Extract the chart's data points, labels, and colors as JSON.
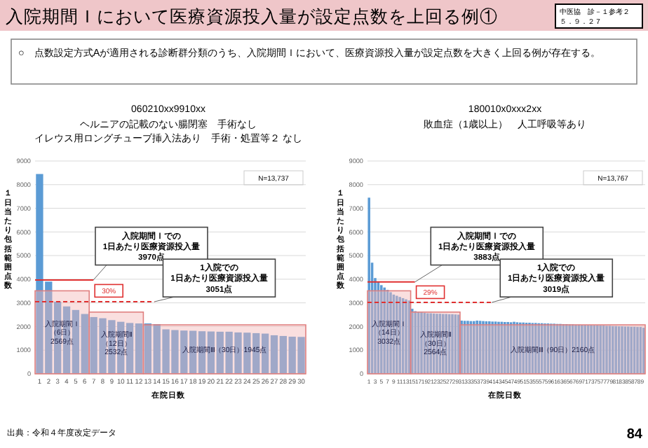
{
  "chart_data": [
    {
      "type": "bar",
      "title": "060210xx9910xx",
      "subtitle": "ヘルニアの記載のない腸閉塞　手術なし",
      "xlabel": "在院日数",
      "ylabel": "１日当たり包括範囲点数",
      "x": [
        1,
        2,
        3,
        4,
        5,
        6,
        7,
        8,
        9,
        10,
        11,
        12,
        13,
        14,
        15,
        16,
        17,
        18,
        19,
        20,
        21,
        22,
        23,
        24,
        25,
        26,
        27,
        28,
        29,
        30
      ],
      "values": [
        8450,
        3900,
        3050,
        2850,
        2700,
        2530,
        2400,
        2350,
        2270,
        2200,
        2150,
        2130,
        2130,
        2100,
        1880,
        1850,
        1830,
        1820,
        1800,
        1790,
        1780,
        1780,
        1750,
        1740,
        1720,
        1700,
        1630,
        1600,
        1570,
        1560
      ],
      "color": "#5b9bd5",
      "xlim": [
        0.5,
        30.5
      ],
      "xticks": [
        1,
        2,
        3,
        4,
        5,
        6,
        7,
        8,
        9,
        10,
        11,
        12,
        13,
        14,
        15,
        16,
        17,
        18,
        19,
        20,
        21,
        22,
        23,
        24,
        25,
        26,
        27,
        28,
        29,
        30
      ],
      "ylim": [
        0,
        9000
      ],
      "yticks": [
        0,
        1000,
        2000,
        3000,
        4000,
        5000,
        6000,
        7000,
        8000,
        9000
      ],
      "grid": "y",
      "ref_lines": [
        {
          "axis": "y",
          "value": 3970,
          "label": "入院期間Ｉでの\n1日あたり医療資源投入量\n3970点",
          "color": "#e03030",
          "line_style": "solid"
        },
        {
          "axis": "y",
          "value": 3051,
          "label": "1入院での\n1日あたり医療資源投入量\n3051点",
          "color": "#e03030",
          "line_style": "dashed"
        }
      ],
      "bands": [
        {
          "axis": "x",
          "from": 0.5,
          "to": 6.5,
          "label": "入院期間Ｉ（6日）\n2569点",
          "color": "#f4b8b8"
        },
        {
          "axis": "x",
          "from": 6.5,
          "to": 12.5,
          "label": "入院期間Ⅱ（12日）\n2532点",
          "color": "#f4b8b8"
        },
        {
          "axis": "x",
          "from": 12.5,
          "to": 30.5,
          "label": "入院期間Ⅲ（30日）1945点",
          "color": "#f4b8b8"
        }
      ],
      "annotations": [
        "N=13,737",
        "30%",
        "イレウス用ロングチューブ挿入法あり　手術・処置等２ なし",
        "入院期間Ｉにおいて医療資源投入量が設定点数を上回る例①",
        "中医協　診－１参考２５．９．２７",
        "○　点数設定方式Aが適用される診断群分類のうち、入院期間Ｉにおいて、医療資源投入量が設定点数を大きく上回る例が存在する。",
        "出典：令和４年度改定データ",
        "84"
      ]
    },
    {
      "type": "bar",
      "title": "180010x0xxx2xx",
      "subtitle": "敗血症（1歳以上）　人工呼吸等あり",
      "xlabel": "在院日数",
      "ylabel": "１日当たり包括範囲点数",
      "x": [
        1,
        2,
        3,
        4,
        5,
        6,
        7,
        8,
        9,
        10,
        11,
        12,
        13,
        14,
        15,
        16,
        17,
        18,
        19,
        20,
        21,
        22,
        23,
        24,
        25,
        26,
        27,
        28,
        29,
        30,
        31,
        32,
        33,
        34,
        35,
        36,
        37,
        38,
        39,
        40,
        41,
        42,
        43,
        44,
        45,
        46,
        47,
        48,
        49,
        50,
        51,
        52,
        53,
        54,
        55,
        56,
        57,
        58,
        59,
        60,
        61,
        62,
        63,
        64,
        65,
        66,
        67,
        68,
        69,
        70,
        71,
        72,
        73,
        74,
        75,
        76,
        77,
        78,
        79,
        80,
        81,
        82,
        83,
        84,
        85,
        86,
        87,
        88,
        89,
        90
      ],
      "values": [
        7450,
        4700,
        4050,
        3900,
        3750,
        3650,
        3550,
        3450,
        3350,
        3300,
        3250,
        3200,
        3150,
        3100,
        2750,
        2650,
        2620,
        2600,
        2580,
        2560,
        2560,
        2550,
        2540,
        2540,
        2530,
        2530,
        2520,
        2520,
        2510,
        2500,
        2250,
        2240,
        2240,
        2230,
        2230,
        2250,
        2240,
        2230,
        2220,
        2220,
        2210,
        2210,
        2200,
        2200,
        2190,
        2190,
        2180,
        2200,
        2180,
        2170,
        2170,
        2160,
        2160,
        2150,
        2150,
        2140,
        2140,
        2130,
        2130,
        2120,
        2120,
        2110,
        2110,
        2100,
        2100,
        2090,
        2090,
        2080,
        2080,
        2070,
        2070,
        2060,
        2060,
        2050,
        2050,
        2040,
        2040,
        2030,
        2030,
        2020,
        2020,
        2010,
        2010,
        2000,
        2000,
        1990,
        1990,
        1980,
        1980,
        1950
      ],
      "color": "#5b9bd5",
      "xlim": [
        0.5,
        90.5
      ],
      "xticks": [
        1,
        3,
        5,
        7,
        9,
        11,
        13,
        15,
        17,
        19,
        21,
        23,
        25,
        27,
        29,
        31,
        33,
        35,
        37,
        39,
        41,
        43,
        45,
        47,
        49,
        51,
        53,
        55,
        57,
        59,
        61,
        63,
        65,
        67,
        69,
        71,
        73,
        75,
        77,
        79,
        81,
        83,
        85,
        87,
        89
      ],
      "ylim": [
        0,
        9000
      ],
      "yticks": [
        0,
        1000,
        2000,
        3000,
        4000,
        5000,
        6000,
        7000,
        8000,
        9000
      ],
      "grid": "y",
      "ref_lines": [
        {
          "axis": "y",
          "value": 3883,
          "label": "入院期間Ｉでの\n1日あたり医療資源投入量\n3883点",
          "color": "#e03030",
          "line_style": "solid"
        },
        {
          "axis": "y",
          "value": 3019,
          "label": "1入院での\n1日あたり医療資源投入量\n3019点",
          "color": "#e03030",
          "line_style": "dashed"
        }
      ],
      "bands": [
        {
          "axis": "x",
          "from": 0.5,
          "to": 14.5,
          "label": "入院期間Ｉ（14日）\n3032点",
          "color": "#f4b8b8"
        },
        {
          "axis": "x",
          "from": 14.5,
          "to": 30.5,
          "label": "入院期間Ⅱ（30日）\n2564点",
          "color": "#f4b8b8"
        },
        {
          "axis": "x",
          "from": 30.5,
          "to": 90.5,
          "label": "入院期間Ⅲ（90日）2160点",
          "color": "#f4b8b8"
        }
      ],
      "annotations": [
        "N=13,767",
        "29%"
      ]
    }
  ]
}
